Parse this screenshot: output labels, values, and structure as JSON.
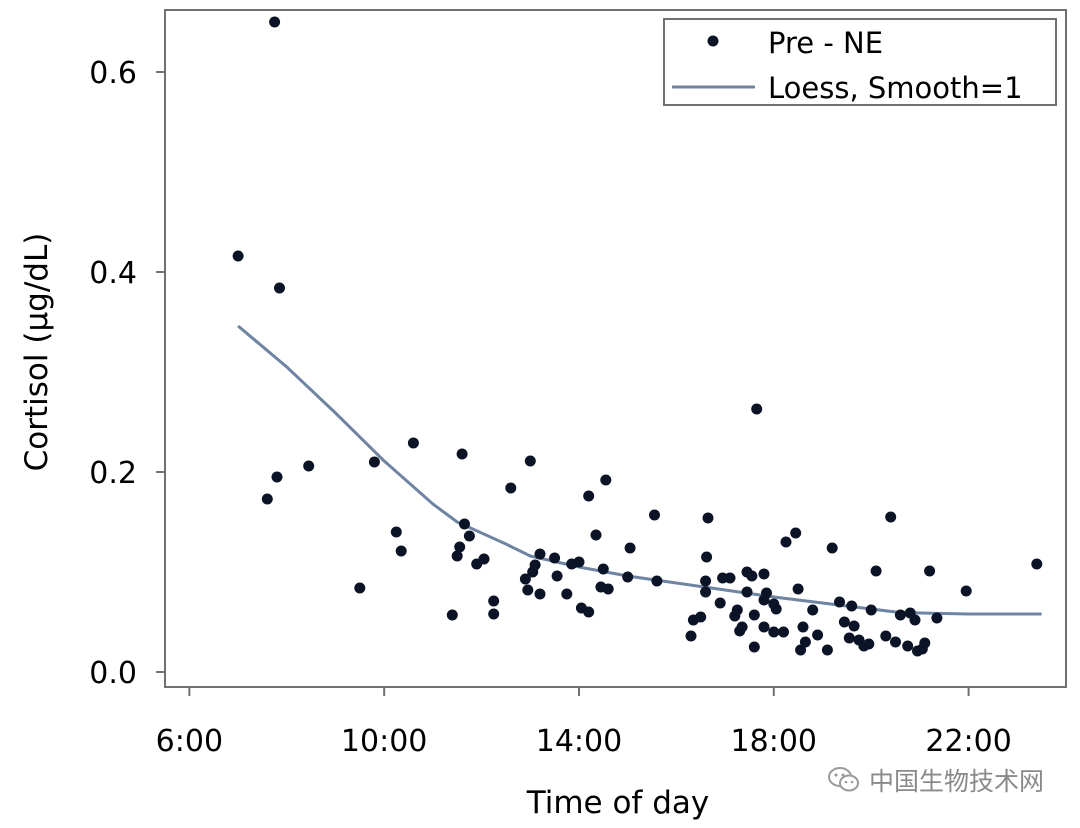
{
  "chart_data": {
    "type": "scatter",
    "xlabel": "Time of day",
    "ylabel": "Cortisol (μg/dL)",
    "xlim": [
      5.5,
      24.0
    ],
    "ylim": [
      -0.015,
      0.662
    ],
    "xticks": [
      6,
      10,
      14,
      18,
      22
    ],
    "xtick_labels": [
      "6:00",
      "10:00",
      "14:00",
      "18:00",
      "22:00"
    ],
    "yticks": [
      0.0,
      0.2,
      0.4,
      0.6
    ],
    "ytick_labels": [
      "0.0",
      "0.2",
      "0.4",
      "0.6"
    ],
    "grid": false,
    "legend_position": "top-right",
    "series": [
      {
        "name": "Pre - NE",
        "kind": "scatter",
        "color": "#0b1326",
        "points": [
          [
            7.0,
            0.416
          ],
          [
            7.6,
            0.173
          ],
          [
            7.75,
            0.65
          ],
          [
            7.8,
            0.195
          ],
          [
            7.85,
            0.384
          ],
          [
            8.45,
            0.206
          ],
          [
            9.5,
            0.084
          ],
          [
            9.8,
            0.21
          ],
          [
            10.25,
            0.14
          ],
          [
            10.35,
            0.121
          ],
          [
            10.6,
            0.229
          ],
          [
            11.4,
            0.057
          ],
          [
            11.5,
            0.116
          ],
          [
            11.55,
            0.125
          ],
          [
            11.6,
            0.218
          ],
          [
            11.65,
            0.148
          ],
          [
            11.75,
            0.136
          ],
          [
            11.9,
            0.108
          ],
          [
            12.05,
            0.113
          ],
          [
            12.25,
            0.071
          ],
          [
            12.25,
            0.058
          ],
          [
            12.6,
            0.184
          ],
          [
            12.9,
            0.093
          ],
          [
            12.95,
            0.082
          ],
          [
            13.0,
            0.211
          ],
          [
            13.05,
            0.1
          ],
          [
            13.1,
            0.107
          ],
          [
            13.2,
            0.078
          ],
          [
            13.2,
            0.118
          ],
          [
            13.5,
            0.114
          ],
          [
            13.55,
            0.096
          ],
          [
            13.75,
            0.078
          ],
          [
            13.85,
            0.108
          ],
          [
            14.0,
            0.11
          ],
          [
            14.05,
            0.064
          ],
          [
            14.2,
            0.06
          ],
          [
            14.2,
            0.176
          ],
          [
            14.35,
            0.137
          ],
          [
            14.45,
            0.085
          ],
          [
            14.5,
            0.103
          ],
          [
            14.55,
            0.192
          ],
          [
            14.6,
            0.083
          ],
          [
            15.0,
            0.095
          ],
          [
            15.05,
            0.124
          ],
          [
            15.55,
            0.157
          ],
          [
            15.6,
            0.091
          ],
          [
            16.3,
            0.036
          ],
          [
            16.35,
            0.052
          ],
          [
            16.5,
            0.055
          ],
          [
            16.6,
            0.08
          ],
          [
            16.6,
            0.091
          ],
          [
            16.62,
            0.115
          ],
          [
            16.65,
            0.154
          ],
          [
            16.9,
            0.069
          ],
          [
            16.95,
            0.094
          ],
          [
            17.1,
            0.094
          ],
          [
            17.2,
            0.056
          ],
          [
            17.25,
            0.062
          ],
          [
            17.3,
            0.041
          ],
          [
            17.35,
            0.045
          ],
          [
            17.45,
            0.1
          ],
          [
            17.45,
            0.08
          ],
          [
            17.55,
            0.096
          ],
          [
            17.6,
            0.057
          ],
          [
            17.6,
            0.025
          ],
          [
            17.65,
            0.263
          ],
          [
            17.8,
            0.072
          ],
          [
            17.8,
            0.045
          ],
          [
            17.8,
            0.098
          ],
          [
            17.85,
            0.079
          ],
          [
            18.0,
            0.068
          ],
          [
            18.0,
            0.04
          ],
          [
            18.05,
            0.063
          ],
          [
            18.2,
            0.04
          ],
          [
            18.25,
            0.13
          ],
          [
            18.45,
            0.139
          ],
          [
            18.5,
            0.083
          ],
          [
            18.55,
            0.022
          ],
          [
            18.6,
            0.045
          ],
          [
            18.65,
            0.03
          ],
          [
            18.8,
            0.062
          ],
          [
            18.9,
            0.037
          ],
          [
            19.1,
            0.022
          ],
          [
            19.2,
            0.124
          ],
          [
            19.35,
            0.07
          ],
          [
            19.45,
            0.05
          ],
          [
            19.55,
            0.034
          ],
          [
            19.6,
            0.066
          ],
          [
            19.65,
            0.046
          ],
          [
            19.75,
            0.032
          ],
          [
            19.85,
            0.026
          ],
          [
            19.95,
            0.028
          ],
          [
            20.0,
            0.062
          ],
          [
            20.1,
            0.101
          ],
          [
            20.3,
            0.036
          ],
          [
            20.4,
            0.155
          ],
          [
            20.5,
            0.03
          ],
          [
            20.6,
            0.057
          ],
          [
            20.75,
            0.026
          ],
          [
            20.8,
            0.059
          ],
          [
            20.9,
            0.052
          ],
          [
            20.95,
            0.021
          ],
          [
            21.05,
            0.023
          ],
          [
            21.1,
            0.029
          ],
          [
            21.2,
            0.101
          ],
          [
            21.35,
            0.054
          ],
          [
            21.95,
            0.081
          ],
          [
            23.4,
            0.108
          ]
        ]
      },
      {
        "name": "Loess, Smooth=1",
        "kind": "line",
        "color": "#6f84a3",
        "points": [
          [
            7.0,
            0.346
          ],
          [
            8.0,
            0.305
          ],
          [
            9.0,
            0.259
          ],
          [
            10.0,
            0.211
          ],
          [
            11.0,
            0.168
          ],
          [
            11.5,
            0.15
          ],
          [
            12.5,
            0.128
          ],
          [
            13.0,
            0.116
          ],
          [
            14.0,
            0.105
          ],
          [
            15.0,
            0.096
          ],
          [
            16.0,
            0.089
          ],
          [
            17.0,
            0.082
          ],
          [
            18.0,
            0.075
          ],
          [
            19.0,
            0.069
          ],
          [
            20.0,
            0.063
          ],
          [
            20.5,
            0.06
          ],
          [
            21.0,
            0.059
          ],
          [
            22.0,
            0.058
          ],
          [
            23.5,
            0.058
          ]
        ]
      }
    ]
  },
  "watermark": {
    "text": "中国生物技术网"
  }
}
